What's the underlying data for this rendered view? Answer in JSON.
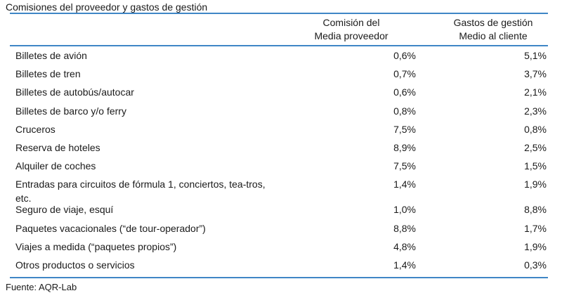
{
  "table": {
    "title": "Comisiones del proveedor y gastos de gestión",
    "col1_header_line1": "Comisión del",
    "col1_header_line2": "Media proveedor",
    "col2_header_line1": "Gastos de gestión",
    "col2_header_line2": "Medio al cliente",
    "rows": [
      {
        "label": "Billetes de avión",
        "commission": "0,6%",
        "fee": "5,1%"
      },
      {
        "label": "Billetes de tren",
        "commission": "0,7%",
        "fee": "3,7%"
      },
      {
        "label": "Billetes de autobús/autocar",
        "commission": "0,6%",
        "fee": "2,1%"
      },
      {
        "label": "Billetes de barco y/o ferry",
        "commission": "0,8%",
        "fee": "2,3%"
      },
      {
        "label": "Cruceros",
        "commission": "7,5%",
        "fee": "0,8%"
      },
      {
        "label": "Reserva de hoteles",
        "commission": "8,9%",
        "fee": "2,5%"
      },
      {
        "label": "Alquiler de coches",
        "commission": "7,5%",
        "fee": "1,5%"
      },
      {
        "label": "Entradas para circuitos de fórmula 1, conciertos, tea-tros, etc.",
        "commission": "1,4%",
        "fee": "1,9%"
      },
      {
        "label": "Seguro de viaje, esquí",
        "commission": "1,0%",
        "fee": "8,8%"
      },
      {
        "label": "Paquetes vacacionales (“de tour-operador”)",
        "commission": "8,8%",
        "fee": "1,7%"
      },
      {
        "label": "Viajes a medida (“paquetes propios”)",
        "commission": "4,8%",
        "fee": "1,9%"
      },
      {
        "label": "Otros productos o servicios",
        "commission": "1,4%",
        "fee": "0,3%"
      }
    ],
    "source": "Fuente: AQR-Lab"
  }
}
